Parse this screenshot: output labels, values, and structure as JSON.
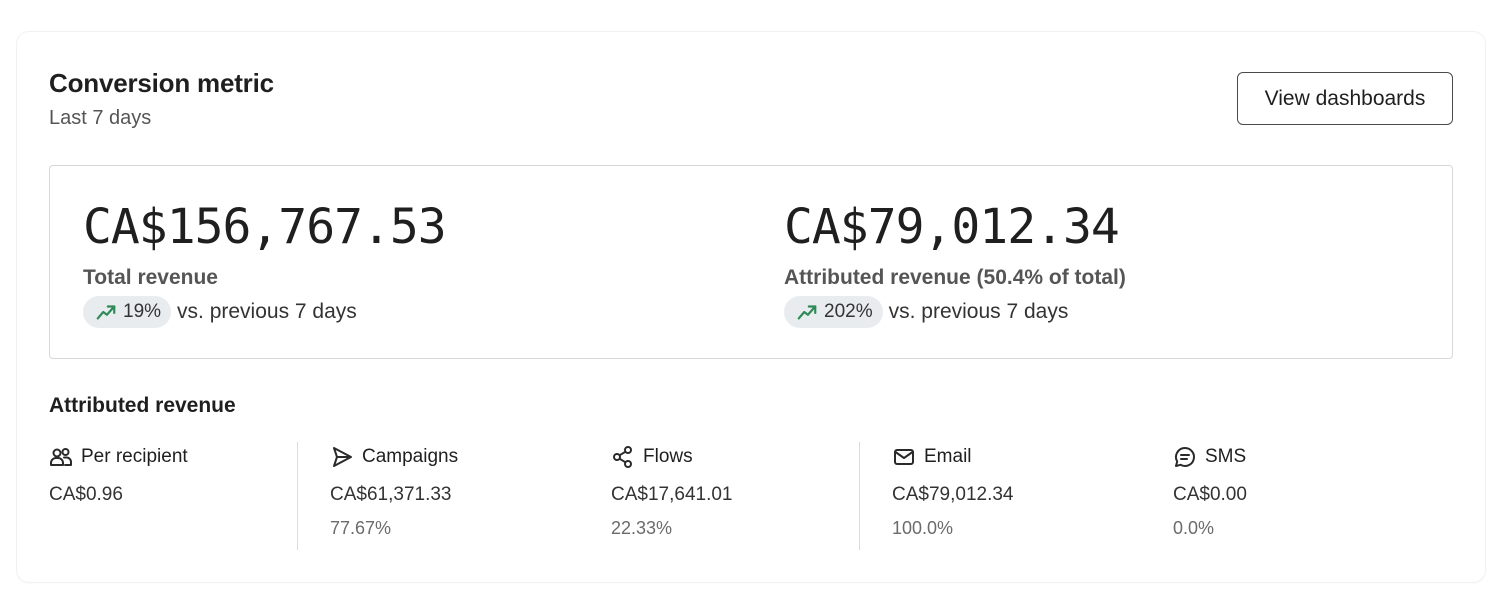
{
  "header": {
    "title": "Conversion metric",
    "subtitle": "Last 7 days",
    "button_label": "View dashboards"
  },
  "summary": {
    "total": {
      "amount": "CA$156,767.53",
      "label": "Total revenue",
      "change": "19%",
      "comparison": "vs. previous 7 days",
      "trend_icon": "trend-up-icon",
      "trend_color": "#2e8b57"
    },
    "attributed": {
      "amount": "CA$79,012.34",
      "label": "Attributed revenue (50.4% of total)",
      "change": "202%",
      "comparison": "vs. previous 7 days",
      "trend_icon": "trend-up-icon",
      "trend_color": "#2e8b57"
    }
  },
  "breakdown": {
    "title": "Attributed revenue",
    "items": [
      {
        "label": "Per recipient",
        "value": "CA$0.96",
        "percent": "",
        "icon": "users-icon"
      },
      {
        "label": "Campaigns",
        "value": "CA$61,371.33",
        "percent": "77.67%",
        "icon": "send-icon"
      },
      {
        "label": "Flows",
        "value": "CA$17,641.01",
        "percent": "22.33%",
        "icon": "flows-icon"
      },
      {
        "label": "Email",
        "value": "CA$79,012.34",
        "percent": "100.0%",
        "icon": "mail-icon"
      },
      {
        "label": "SMS",
        "value": "CA$0.00",
        "percent": "0.0%",
        "icon": "chat-icon"
      }
    ]
  }
}
